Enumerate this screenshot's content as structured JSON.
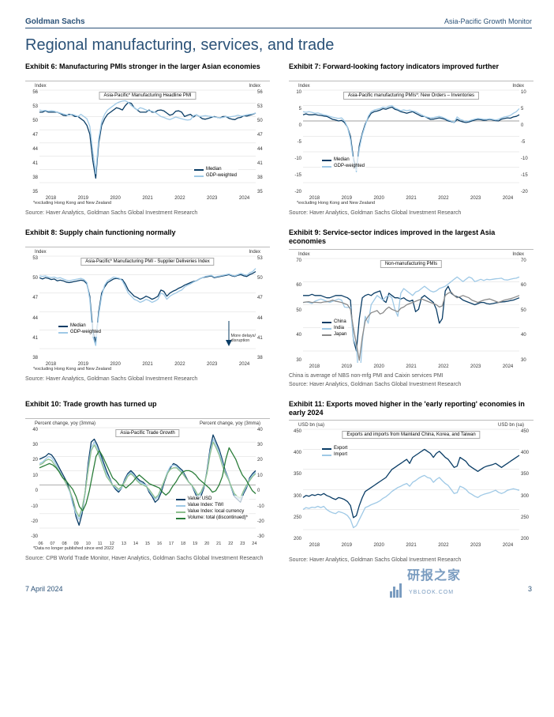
{
  "header": {
    "brand": "Goldman Sachs",
    "doc": "Asia-Pacific Growth Monitor"
  },
  "section_title": "Regional manufacturing, services, and trade",
  "footer": {
    "date": "7 April 2024",
    "page": "3"
  },
  "watermark": {
    "ch": "研报之家",
    "en": "YBLOOK.COM"
  },
  "palette": {
    "navy": "#0a3d66",
    "sky": "#9fc9e6",
    "grid": "#d8d8d8",
    "green": "#2b7d3a",
    "lgreen": "#8dbf8e",
    "gray": "#8a8a8a"
  },
  "axis_label_index": "Index",
  "exh6": {
    "title": "Exhibit 6: Manufacturing PMIs stronger in the larger Asian economies",
    "chart_title": "Asia-Pacific* Manufacturing Headline PMI",
    "yticks": [
      56,
      53,
      50,
      47,
      44,
      41,
      38,
      35
    ],
    "xticks": [
      "2018",
      "2019",
      "2020",
      "2021",
      "2022",
      "2023",
      "2024"
    ],
    "footnote": "*excluding Hong Kong and New Zealand",
    "legend": [
      {
        "label": "Median",
        "color": "#0a3d66"
      },
      {
        "label": "GDP-weighted",
        "color": "#9fc9e6"
      }
    ],
    "series": {
      "median": [
        51,
        51,
        51.3,
        51,
        51,
        51,
        51,
        50.7,
        50.3,
        50.2,
        50.5,
        50.4,
        50,
        50,
        49.5,
        49,
        48,
        46,
        40,
        36,
        44,
        48,
        49.5,
        50.5,
        51,
        51.5,
        52,
        51.8,
        51.5,
        52.5,
        53.2,
        53,
        52,
        51.5,
        51,
        51,
        51,
        51.5,
        51,
        51,
        51.4,
        51.5,
        51.3,
        50.8,
        50.3,
        50.5,
        51.2,
        51.3,
        51,
        50,
        50.3,
        50.5,
        49.9,
        50.4,
        50,
        49.5,
        49.4,
        49.6,
        49.8,
        50,
        49.8,
        49.7,
        50,
        50,
        49.6,
        49.4,
        49.3,
        49.7,
        49.8,
        50.2,
        50.1,
        50.3,
        50.5,
        50.8
      ],
      "gdp": [
        51.5,
        51.3,
        51.4,
        51.2,
        51.3,
        51.2,
        51,
        50.8,
        50.6,
        50.4,
        50.3,
        50.5,
        50.3,
        50,
        50.5,
        50,
        49.5,
        47.8,
        42,
        37,
        45,
        48.8,
        50.5,
        51.5,
        52,
        52.5,
        53,
        53.3,
        53.5,
        53.6,
        53.2,
        52.5,
        52,
        51.5,
        52,
        51.8,
        51.5,
        51.3,
        51.2,
        51,
        50.5,
        50,
        49.8,
        49.5,
        49.3,
        49.6,
        49.9,
        49.7,
        49.5,
        49.3,
        49.2,
        49.3,
        50.2,
        50.4,
        50,
        50.1,
        50.2,
        50.1,
        50,
        49.9,
        49.8,
        49.7,
        49.8,
        50,
        49.9,
        50,
        50.1,
        50.3,
        50.1,
        50.2,
        50.4,
        50.5,
        50.6,
        50.8
      ]
    },
    "source": "Source: Haver Analytics, Goldman Sachs Global Investment Research"
  },
  "exh7": {
    "title": "Exhibit 7: Forward-looking factory indicators improved further",
    "chart_title": "Asia-Pacific manufacturing PMIs*: New Orders – Inventories",
    "yticks": [
      10,
      5,
      0,
      -5,
      -10,
      -15,
      -20
    ],
    "xticks": [
      "2018",
      "2019",
      "2020",
      "2021",
      "2022",
      "2023",
      "2024"
    ],
    "footnote": "*excluding Hong Kong and New Zealand",
    "legend": [
      {
        "label": "Median",
        "color": "#0a3d66"
      },
      {
        "label": "GDP-weighted",
        "color": "#9fc9e6"
      }
    ],
    "series": {
      "median": [
        2,
        2.3,
        2,
        2,
        2.1,
        1.9,
        1.8,
        1.6,
        1.5,
        1,
        0.5,
        0.3,
        0,
        0.2,
        -0.5,
        -2,
        -5,
        -12,
        -16,
        -8,
        -4,
        -1,
        1,
        2.5,
        3,
        3.2,
        3.5,
        4,
        3.8,
        4.2,
        4.5,
        3.8,
        3.5,
        3,
        2.8,
        2.5,
        2.8,
        3,
        2.5,
        2,
        1.5,
        1.5,
        1,
        0.5,
        0.6,
        0.8,
        1,
        0.8,
        0.5,
        0,
        -0.2,
        -0.5,
        0.5,
        0,
        -0.3,
        -0.5,
        -0.3,
        0,
        0.3,
        0.5,
        0.4,
        0.2,
        0.3,
        0.5,
        0.3,
        0.1,
        0,
        0.6,
        0.8,
        1,
        0.9,
        1.3,
        1.5,
        2
      ],
      "gdp": [
        3,
        2.8,
        3,
        2.8,
        2.5,
        2.6,
        2.3,
        2,
        1.8,
        1.5,
        1.2,
        1,
        0.8,
        1,
        0,
        -2,
        -6,
        -13,
        -16.5,
        -9,
        -4.5,
        -1.5,
        1.5,
        3,
        3.5,
        3.8,
        4,
        4.5,
        4.3,
        4.8,
        5,
        4.2,
        3.8,
        3.3,
        3.6,
        3.3,
        3.5,
        3.2,
        3,
        2.5,
        2,
        1.5,
        1.2,
        1,
        1.1,
        1.3,
        1.5,
        1.2,
        0.8,
        0.3,
        0,
        -0.5,
        1.3,
        0.5,
        0.2,
        -0.2,
        0,
        0.3,
        0.6,
        0.8,
        0.7,
        0.5,
        0.5,
        0.7,
        0.5,
        0.3,
        0.5,
        1,
        1.3,
        1.5,
        1.8,
        2.5,
        3,
        4
      ]
    },
    "source": "Source: Haver Analytics, Goldman Sachs Global Investment Research"
  },
  "exh8": {
    "title": "Exhibit 8: Supply chain functioning normally",
    "chart_title": "Asia-Pacific* Manufacturing PMI - Supplier Deliveries Index",
    "yticks": [
      53,
      50,
      47,
      44,
      41,
      38
    ],
    "xticks": [
      "2018",
      "2019",
      "2020",
      "2021",
      "2022",
      "2023",
      "2024"
    ],
    "footnote": "*excluding Hong Kong and New Zealand",
    "annotation": "More delays/\ndisruption",
    "legend": [
      {
        "label": "Median",
        "color": "#0a3d66"
      },
      {
        "label": "GDP-weighted",
        "color": "#9fc9e6"
      }
    ],
    "series": {
      "median": [
        49.5,
        49.3,
        49.5,
        49.4,
        49.2,
        49.3,
        49,
        49.1,
        49,
        48.8,
        48.7,
        48.8,
        48.9,
        49,
        49.1,
        49,
        48.5,
        46.5,
        41,
        39,
        44,
        47,
        48,
        48.7,
        49,
        49.3,
        49.4,
        49.3,
        49.2,
        48.5,
        47.5,
        47,
        46.5,
        46.3,
        46,
        46.2,
        46.5,
        46.3,
        46,
        46.2,
        46.5,
        47.5,
        47.3,
        46.5,
        47,
        47.3,
        47.5,
        47.8,
        48,
        48.3,
        48.5,
        48.7,
        48.9,
        49,
        49.3,
        49.5,
        49.6,
        49.7,
        49.8,
        49.5,
        49.6,
        49.7,
        49.8,
        49.9,
        50,
        49.8,
        49.7,
        49.9,
        50,
        49.8,
        49.7,
        50,
        50.2,
        50.5
      ],
      "gdp": [
        49.8,
        49.7,
        49.8,
        49.6,
        49.5,
        49.6,
        49.4,
        49.5,
        49.3,
        49.1,
        49,
        49.1,
        49.2,
        49.3,
        49.4,
        49.2,
        48.7,
        46,
        40,
        38.5,
        43.5,
        46.5,
        48.3,
        49,
        49.3,
        49.6,
        49.5,
        49.4,
        49,
        48,
        47,
        46.5,
        46,
        45.8,
        45.5,
        45.7,
        46,
        45.8,
        45.5,
        45.7,
        46,
        47,
        46.8,
        46,
        46.5,
        46.8,
        47,
        47.3,
        47.5,
        48,
        48.3,
        48.5,
        48.8,
        49,
        49.3,
        49.5,
        49.7,
        49.8,
        49.9,
        49.6,
        49.7,
        49.8,
        49.9,
        50,
        50.1,
        49.9,
        49.8,
        50,
        50.2,
        50,
        49.9,
        50.3,
        50.5,
        51
      ]
    },
    "source": "Source: Haver Analytics, Goldman Sachs Global Investment Research"
  },
  "exh9": {
    "title": "Exhibit 9: Service-sector indices improved in the largest Asia economies",
    "chart_title": "Non-manufacturing PMIs",
    "yticks": [
      70,
      60,
      50,
      40,
      30
    ],
    "xticks": [
      "2018",
      "2019",
      "2020",
      "2021",
      "2022",
      "2023",
      "2024"
    ],
    "legend": [
      {
        "label": "China",
        "color": "#0a3d66"
      },
      {
        "label": "India",
        "color": "#9fc9e6"
      },
      {
        "label": "Japan",
        "color": "#8a8a8a"
      }
    ],
    "series": {
      "china": [
        54,
        54,
        54,
        54.5,
        54,
        54,
        54,
        53.5,
        53,
        53,
        53.5,
        54,
        54,
        54,
        53.5,
        53,
        52,
        35,
        30,
        44,
        53,
        54,
        54.5,
        54,
        55,
        55.5,
        56,
        52,
        51,
        55,
        54,
        53,
        53,
        52.5,
        53,
        52,
        51.5,
        52,
        47,
        48,
        53,
        54,
        53,
        52,
        51,
        48,
        42,
        44,
        56,
        58,
        55,
        54,
        53.5,
        53,
        52,
        51.5,
        51,
        50.5,
        50,
        50.5,
        51,
        51,
        50.5,
        50.3,
        50.5,
        50.8,
        51,
        51.2,
        51.3,
        51.5,
        51.8,
        52,
        52.5,
        53
      ],
      "india": [
        51,
        51.2,
        51,
        50.5,
        51.5,
        52,
        52.5,
        52,
        51.5,
        51,
        51.5,
        52,
        52.5,
        52,
        49,
        48.8,
        49,
        35,
        32,
        15,
        34,
        45,
        42,
        50,
        52,
        54,
        53,
        52,
        53.5,
        54,
        53,
        48,
        45,
        55,
        57,
        56,
        55,
        54,
        55.5,
        56,
        57,
        58,
        57,
        56,
        55.5,
        56,
        57,
        57.5,
        58,
        59,
        60,
        61,
        62,
        61,
        60,
        61,
        62,
        61.5,
        60,
        60.5,
        61,
        60.5,
        61,
        60.8,
        61,
        61.2,
        61.3,
        61.5,
        60.8,
        60.7,
        61,
        61.3,
        61.5,
        62
      ],
      "japan": [
        51,
        51.2,
        51.3,
        51,
        51.1,
        51,
        50.9,
        51.2,
        51.3,
        51.5,
        52,
        51.5,
        51.3,
        51,
        50.5,
        50,
        48,
        40,
        33,
        26,
        36,
        43,
        45,
        46.5,
        47,
        47.5,
        46,
        46.5,
        48,
        49,
        48,
        47.5,
        47,
        48.5,
        49,
        50,
        50.5,
        51,
        51.5,
        52,
        52.5,
        52,
        51.5,
        51,
        50.5,
        50,
        49,
        49.5,
        54,
        55,
        55.5,
        54,
        53,
        53.5,
        54,
        53.5,
        53,
        52,
        51.5,
        51,
        51.5,
        52,
        52.3,
        52.5,
        52,
        51.5,
        51,
        51.5,
        52,
        52.3,
        52.6,
        53,
        53.5,
        54
      ]
    },
    "note": "China is average of NBS non-mfg PMI and Caixin services PMI",
    "source": "Source: Haver Analytics, Goldman Sachs Global Investment Research"
  },
  "exh10": {
    "title": "Exhibit 10: Trade growth has turned up",
    "chart_title": "Asia-Pacific Trade Growth",
    "axis_label": "Percent change, yoy (3mma)",
    "yticks": [
      40,
      30,
      20,
      10,
      0,
      -10,
      -20,
      -30
    ],
    "xticks_full": [
      "06",
      "07",
      "08",
      "09",
      "10",
      "11",
      "12",
      "13",
      "14",
      "15",
      "16",
      "17",
      "18",
      "19",
      "20",
      "21",
      "22",
      "23",
      "24"
    ],
    "footnote": "*Data no longer published since end 2022",
    "legend": [
      {
        "label": "Value: USD",
        "color": "#0a3d66"
      },
      {
        "label": "Value Index: TWI",
        "color": "#9fc9e6"
      },
      {
        "label": "Value Index: local currency",
        "color": "#8dbf8e"
      },
      {
        "label": "Volume: total (discontinued)*",
        "color": "#2b7d3a"
      }
    ],
    "series": {
      "usd": [
        18,
        19,
        20,
        22,
        21,
        18,
        14,
        10,
        6,
        2,
        -4,
        -12,
        -22,
        -28,
        -20,
        -5,
        15,
        30,
        32,
        28,
        22,
        16,
        10,
        5,
        0,
        -3,
        -5,
        -2,
        4,
        8,
        10,
        8,
        5,
        3,
        2,
        0,
        -5,
        -8,
        -12,
        -10,
        -5,
        2,
        8,
        12,
        15,
        14,
        12,
        10,
        6,
        2,
        0,
        -5,
        -10,
        -8,
        -2,
        10,
        25,
        35,
        30,
        25,
        18,
        10,
        5,
        -2,
        -8,
        -10,
        -12,
        -6,
        -2,
        5,
        8,
        10
      ],
      "twi": [
        15,
        16,
        18,
        20,
        19,
        16,
        12,
        8,
        4,
        0,
        -5,
        -14,
        -20,
        -24,
        -18,
        -6,
        12,
        26,
        30,
        26,
        20,
        14,
        8,
        4,
        0,
        -2,
        -4,
        -2,
        3,
        7,
        9,
        7,
        4,
        2,
        1,
        0,
        -4,
        -7,
        -10,
        -8,
        -3,
        3,
        9,
        13,
        14,
        13,
        11,
        9,
        5,
        2,
        0,
        -4,
        -8,
        -6,
        -1,
        9,
        23,
        32,
        28,
        23,
        16,
        9,
        5,
        -2,
        -7,
        -9,
        -10,
        -5,
        -1,
        4,
        7,
        9
      ],
      "loc": [
        14,
        15,
        17,
        18,
        17,
        14,
        11,
        7,
        4,
        0,
        -4,
        -10,
        -18,
        -22,
        -16,
        -5,
        10,
        24,
        28,
        24,
        18,
        12,
        6,
        3,
        0,
        -1,
        -3,
        -1,
        2,
        6,
        8,
        6,
        3,
        1,
        0,
        -1,
        -3,
        -6,
        -9,
        -7,
        -2,
        3,
        8,
        11,
        12,
        12,
        10,
        8,
        5,
        2,
        0,
        -3,
        -7,
        -5,
        0,
        8,
        21,
        30,
        26,
        21,
        14,
        8,
        4,
        -1,
        -6,
        -8,
        -9,
        -4,
        0,
        3,
        6,
        8
      ],
      "vol": [
        12,
        13,
        14,
        15,
        14,
        12,
        9,
        5,
        3,
        0,
        -3,
        -8,
        -15,
        -18,
        -13,
        -4,
        8,
        20,
        24,
        20,
        15,
        10,
        5,
        3,
        0,
        0,
        -2,
        0,
        2,
        5,
        7,
        5,
        3,
        1,
        0,
        -1,
        -2,
        -5,
        -7,
        -5,
        -1,
        2,
        6,
        9,
        10,
        10,
        9,
        7,
        4,
        2,
        0,
        -2,
        -5,
        -4,
        0,
        6,
        18,
        26,
        22,
        18,
        12,
        7,
        4,
        0,
        -4,
        -6
      ]
    },
    "source": "Source: CPB World Trade Monitor, Haver Analytics, Goldman Sachs Global Investment Research"
  },
  "exh11": {
    "title": "Exhibit 11: Exports moved higher in the 'early reporting' economies in early 2024",
    "chart_title": "Exports and imports from Mainland China, Korea, and Taiwan",
    "axis_label": "USD bn (sa)",
    "yticks": [
      450,
      400,
      350,
      300,
      250,
      200
    ],
    "xticks": [
      "2018",
      "2019",
      "2020",
      "2021",
      "2022",
      "2023",
      "2024"
    ],
    "legend": [
      {
        "label": "Export",
        "color": "#0a3d66"
      },
      {
        "label": "Import",
        "color": "#9fc9e6"
      }
    ],
    "series": {
      "export": [
        280,
        285,
        283,
        287,
        285,
        288,
        286,
        290,
        285,
        282,
        278,
        275,
        280,
        278,
        275,
        270,
        260,
        230,
        235,
        260,
        280,
        295,
        300,
        305,
        310,
        315,
        320,
        325,
        330,
        340,
        350,
        355,
        360,
        365,
        370,
        375,
        365,
        380,
        385,
        390,
        395,
        400,
        395,
        390,
        380,
        390,
        395,
        388,
        380,
        375,
        365,
        355,
        358,
        380,
        375,
        370,
        360,
        355,
        350,
        345,
        350,
        355,
        358,
        360,
        362,
        365,
        360,
        355,
        360,
        365,
        370,
        375,
        380,
        385
      ],
      "import": [
        250,
        255,
        253,
        256,
        255,
        258,
        255,
        258,
        250,
        245,
        242,
        240,
        245,
        243,
        240,
        235,
        225,
        205,
        210,
        225,
        240,
        255,
        258,
        262,
        265,
        268,
        272,
        278,
        282,
        288,
        295,
        300,
        305,
        308,
        312,
        315,
        308,
        318,
        322,
        328,
        332,
        335,
        330,
        328,
        318,
        325,
        330,
        322,
        315,
        310,
        300,
        290,
        292,
        308,
        305,
        300,
        292,
        288,
        283,
        280,
        285,
        288,
        290,
        292,
        295,
        298,
        293,
        290,
        293,
        298,
        300,
        302,
        300,
        298
      ]
    },
    "source": "Source: Haver Analytics, Goldman Sachs Global Investment Research"
  }
}
